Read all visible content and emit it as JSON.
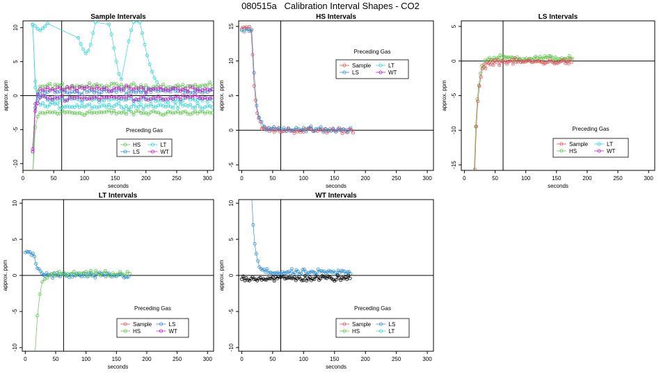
{
  "figure": {
    "title": "080515a   Calibration Interval Shapes - CO2"
  },
  "colors": {
    "Sample": "#e0535a",
    "HS": "#5bc84a",
    "LS": "#2f8fd8",
    "LT": "#2fd6d6",
    "WT": "#c21fc4",
    "black": "#000000"
  },
  "chart_data": [
    {
      "id": "sample",
      "type": "scatter",
      "title": "Sample Intervals",
      "xlabel": "seconds",
      "ylabel": "approx. ppm",
      "xlim": [
        0,
        310
      ],
      "ylim": [
        -11,
        11
      ],
      "xticks": [
        0,
        50,
        100,
        150,
        200,
        250,
        300
      ],
      "yticks": [
        -10,
        -5,
        0,
        5,
        10
      ],
      "vline": 63,
      "hline": 0,
      "legend": {
        "title": "Preceding Gas",
        "position": "bottom-center",
        "ncol": 2,
        "entries": [
          "HS",
          "LT",
          "LS",
          "WT"
        ]
      },
      "series": [
        {
          "name": "HS",
          "color": "#5bc84a",
          "start": 16,
          "end": 308,
          "dt": 4,
          "init": -12,
          "level": -2.5,
          "tau": 3
        },
        {
          "name": "HS",
          "color": "#5bc84a",
          "start": 16,
          "end": 308,
          "dt": 4,
          "init": -12,
          "level": 1.4,
          "tau": 3
        },
        {
          "name": "LS",
          "color": "#2f8fd8",
          "start": 16,
          "end": 308,
          "dt": 4,
          "init": -8,
          "level": 0.6,
          "tau": 3
        },
        {
          "name": "LT",
          "color": "#2fd6d6",
          "start": 16,
          "end": 308,
          "dt": 4,
          "init": 10.5,
          "level": -1.5,
          "tau": 3
        },
        {
          "name": "LT",
          "color": "#2fd6d6",
          "start": 16,
          "end": 308,
          "dt": 4,
          "init": 10.5,
          "level": -0.6,
          "tau": 3
        },
        {
          "name": "WT",
          "color": "#c21fc4",
          "start": 16,
          "end": 308,
          "dt": 4,
          "init": -8,
          "level": -0.3,
          "tau": 3
        },
        {
          "name": "WT",
          "color": "#c21fc4",
          "start": 16,
          "end": 308,
          "dt": 4,
          "init": -8,
          "level": 1.0,
          "tau": 3
        }
      ],
      "extra": [
        {
          "name": "LT spikes",
          "color": "#2fd6d6",
          "x": [
            20,
            24,
            28,
            32,
            36,
            40,
            90,
            94,
            98,
            102,
            106,
            110,
            114,
            118,
            140,
            144,
            148,
            152,
            156,
            160,
            172,
            176,
            180,
            190,
            194,
            198,
            202,
            206,
            210,
            214,
            218
          ],
          "y": [
            10.2,
            9.8,
            9.6,
            9.9,
            10.2,
            10.6,
            8.5,
            7.6,
            6.8,
            6.2,
            6.6,
            7.5,
            9.2,
            10.8,
            10.5,
            9.0,
            7.0,
            5.0,
            3.2,
            2.4,
            8.0,
            9.6,
            10.8,
            10.8,
            9.2,
            7.5,
            5.9,
            4.6,
            3.5,
            2.6,
            2.0
          ]
        }
      ]
    },
    {
      "id": "hs",
      "type": "scatter",
      "title": "HS Intervals",
      "xlabel": "seconds",
      "ylabel": "approx. ppm",
      "xlim": [
        -5,
        310
      ],
      "ylim": [
        -5.8,
        15.8
      ],
      "xticks": [
        0,
        50,
        100,
        150,
        200,
        250,
        300
      ],
      "yticks": [
        -5,
        0,
        5,
        10,
        15
      ],
      "vline": 63,
      "hline": 0,
      "legend": {
        "title": "Preceding Gas",
        "position": "upper-center",
        "ncol": 2,
        "entries": [
          "Sample",
          "LT",
          "LS",
          "WT"
        ]
      },
      "series": [
        {
          "name": "Sample",
          "color": "#e0535a",
          "start": 0,
          "end": 180,
          "dt": 2.5,
          "init": 14.8,
          "level": 0,
          "tau": 5,
          "delay": 16
        },
        {
          "name": "LS",
          "color": "#2f8fd8",
          "start": 0,
          "end": 176,
          "dt": 4,
          "init": 14.6,
          "level": 0.1,
          "tau": 5,
          "delay": 17
        }
      ],
      "extra": []
    },
    {
      "id": "ls",
      "type": "scatter",
      "title": "LS Intervals",
      "xlabel": "seconds",
      "ylabel": "approx. ppm",
      "xlim": [
        -5,
        310
      ],
      "ylim": [
        -15.8,
        5.8
      ],
      "xticks": [
        0,
        50,
        100,
        150,
        200,
        250,
        300
      ],
      "yticks": [
        -15,
        -10,
        -5,
        0,
        5
      ],
      "vline": 63,
      "hline": 0,
      "legend": {
        "title": "Preceding Gas",
        "position": "bottom-center",
        "ncol": 2,
        "entries": [
          "Sample",
          "LT",
          "HS",
          "WT"
        ]
      },
      "series": [
        {
          "name": "HS",
          "color": "#5bc84a",
          "start": 16,
          "end": 176,
          "dt": 2.5,
          "init": -16,
          "level": 0.4,
          "tau": 5
        },
        {
          "name": "Sample",
          "color": "#e0535a",
          "start": 17,
          "end": 176,
          "dt": 2.5,
          "init": -16,
          "level": -0.1,
          "tau": 5
        }
      ],
      "extra": []
    },
    {
      "id": "lt",
      "type": "scatter",
      "title": "LT Intervals",
      "xlabel": "seconds",
      "ylabel": "approx. ppm",
      "xlim": [
        -5,
        310
      ],
      "ylim": [
        -10.5,
        10.5
      ],
      "xticks": [
        0,
        50,
        100,
        150,
        200,
        250,
        300
      ],
      "yticks": [
        -10,
        -5,
        0,
        5,
        10
      ],
      "vline": 63,
      "hline": 0,
      "legend": {
        "title": "Preceding Gas",
        "position": "bottom-center",
        "ncol": 2,
        "entries": [
          "Sample",
          "LS",
          "HS",
          "WT"
        ]
      },
      "series": [
        {
          "name": "LS",
          "color": "#2f8fd8",
          "start": 0,
          "end": 172,
          "dt": 2.5,
          "init": 3.0,
          "level": 0,
          "tau": 6,
          "delay": 14
        },
        {
          "name": "HS",
          "color": "#5bc84a",
          "start": 16,
          "end": 172,
          "dt": 4,
          "init": -11,
          "level": 0.2,
          "tau": 6
        }
      ],
      "extra": []
    },
    {
      "id": "wt",
      "type": "scatter",
      "title": "WT Intervals",
      "xlabel": "seconds",
      "ylabel": "approx. ppm",
      "xlim": [
        -5,
        310
      ],
      "ylim": [
        -10.5,
        10.5
      ],
      "xticks": [
        0,
        50,
        100,
        150,
        200,
        250,
        300
      ],
      "yticks": [
        -10,
        -5,
        0,
        5,
        10
      ],
      "vline": 63,
      "hline": 0,
      "legend": {
        "title": "Preceding Gas",
        "position": "bottom-center",
        "ncol": 2,
        "entries": [
          "Sample",
          "LS",
          "HS",
          "LT"
        ]
      },
      "series": [
        {
          "name": "LS",
          "color": "#2f8fd8",
          "start": 16,
          "end": 176,
          "dt": 2.5,
          "init": 11,
          "level": 0.4,
          "tau": 5
        },
        {
          "name": "black",
          "color": "#000000",
          "start": 0,
          "end": 176,
          "dt": 2.5,
          "init": -0.4,
          "level": -0.4,
          "tau": 5
        }
      ],
      "extra": []
    }
  ]
}
